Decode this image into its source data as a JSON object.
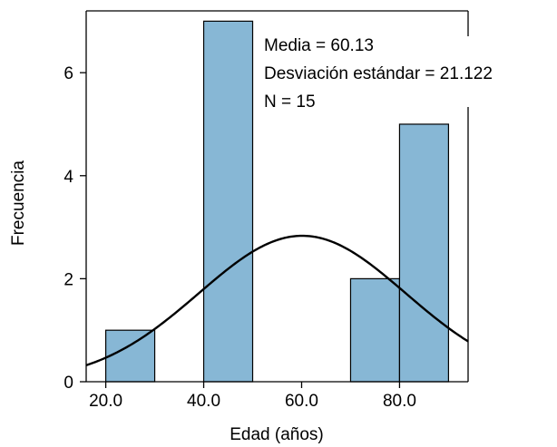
{
  "chart_data": {
    "type": "histogram",
    "title": "",
    "xlabel": "Edad (años)",
    "ylabel": "Frecuencia",
    "xlim": [
      16,
      94
    ],
    "ylim": [
      0,
      7.2
    ],
    "x_ticks": [
      {
        "value": 20,
        "label": "20.0"
      },
      {
        "value": 40,
        "label": "40.0"
      },
      {
        "value": 60,
        "label": "60.0"
      },
      {
        "value": 80,
        "label": "80.0"
      }
    ],
    "y_ticks": [
      {
        "value": 0,
        "label": "0"
      },
      {
        "value": 2,
        "label": "2"
      },
      {
        "value": 4,
        "label": "4"
      },
      {
        "value": 6,
        "label": "6"
      }
    ],
    "bins": [
      {
        "start": 20,
        "end": 30,
        "count": 1
      },
      {
        "start": 30,
        "end": 40,
        "count": 0
      },
      {
        "start": 40,
        "end": 50,
        "count": 7
      },
      {
        "start": 50,
        "end": 60,
        "count": 0
      },
      {
        "start": 60,
        "end": 70,
        "count": 0
      },
      {
        "start": 70,
        "end": 80,
        "count": 2
      },
      {
        "start": 80,
        "end": 90,
        "count": 5
      }
    ],
    "normal_curve": {
      "mean": 60.13,
      "sd": 21.122,
      "n": 15,
      "bin_width": 10
    },
    "stats_text": [
      "Media = 60.13",
      "Desviación estándar = 21.122",
      "N = 15"
    ],
    "bar_color": "#87b7d5",
    "bar_edge_color": "#000000",
    "curve_color": "#000000",
    "grid": false
  }
}
